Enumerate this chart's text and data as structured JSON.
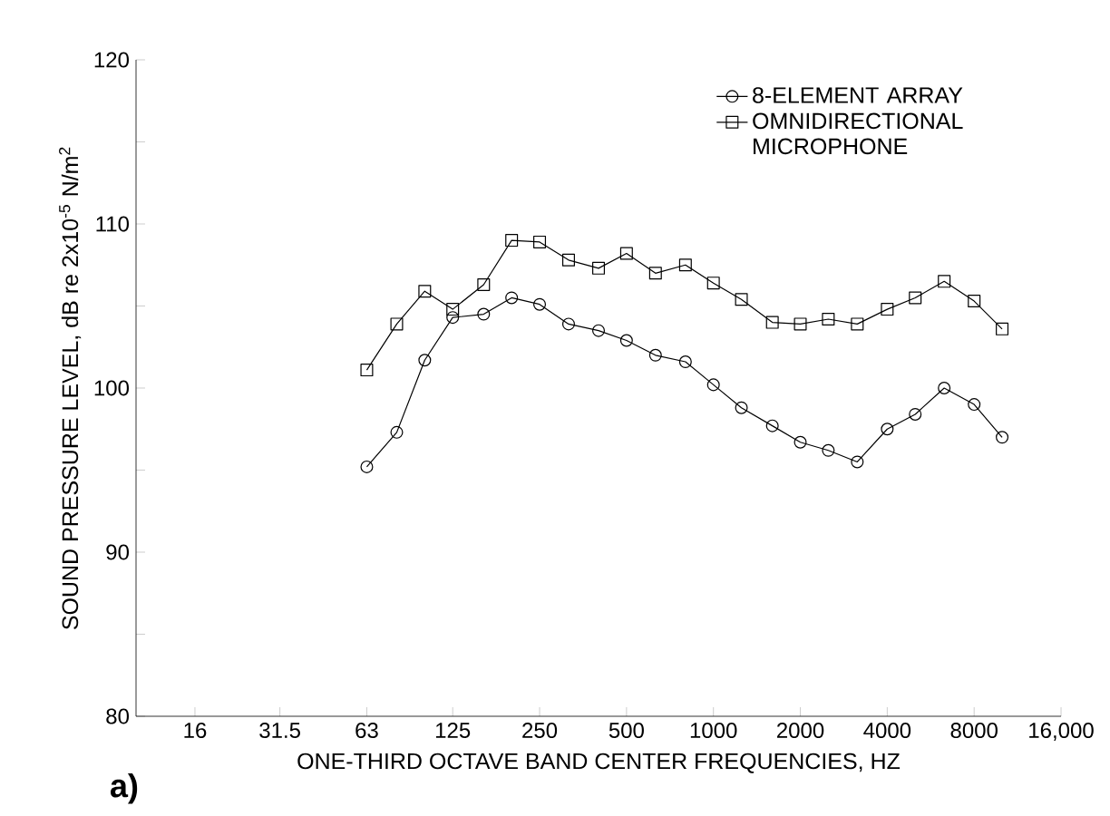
{
  "chart_data": {
    "type": "line",
    "xlabel": "ONE-THIRD OCTAVE BAND CENTER FREQUENCIES, HZ",
    "ylabel": "SOUND PRESSURE LEVEL, dB re 2x10$^{-5}$ N/m$^{2}$",
    "annotations": [
      "a)"
    ],
    "log": "x",
    "x": [
      63,
      80,
      100,
      125,
      160,
      200,
      250,
      315,
      400,
      500,
      630,
      800,
      1000,
      1250,
      1600,
      2000,
      2500,
      3150,
      4000,
      5000,
      6300,
      8000,
      10000
    ],
    "series": [
      {
        "name": "8-ELEMENT ARRAY",
        "color": "#000000",
        "marker": "circle",
        "values": [
          95.2,
          97.3,
          101.7,
          104.3,
          104.5,
          105.5,
          105.1,
          103.9,
          103.5,
          102.9,
          102.0,
          101.6,
          100.2,
          98.8,
          97.7,
          96.7,
          96.2,
          95.5,
          97.5,
          98.4,
          100.0,
          99.0,
          97.0
        ]
      },
      {
        "name": "OMNIDIRECTIONAL MICROPHONE",
        "color": "#000000",
        "marker": "square",
        "values": [
          101.1,
          103.9,
          105.9,
          104.8,
          106.3,
          109.0,
          108.9,
          107.8,
          107.3,
          108.2,
          107.0,
          107.5,
          106.4,
          105.4,
          104.0,
          103.9,
          104.2,
          103.9,
          104.8,
          105.5,
          106.5,
          105.3,
          103.6
        ]
      }
    ],
    "xlim": [
      10,
      16000
    ],
    "xticks": [
      16,
      31.5,
      63,
      125,
      250,
      500,
      1000,
      2000,
      4000,
      8000,
      {
        "value": 16000,
        "label": "16,000"
      }
    ],
    "ylim": [
      80,
      120
    ],
    "yticks": [
      80,
      {
        "value": 85,
        "label": null
      },
      90,
      {
        "value": 95,
        "label": null
      },
      100,
      {
        "value": 105,
        "label": null
      },
      110,
      {
        "value": 115,
        "label": null
      },
      120
    ],
    "grid": false,
    "legend": "top right",
    "line_style": "solid"
  }
}
